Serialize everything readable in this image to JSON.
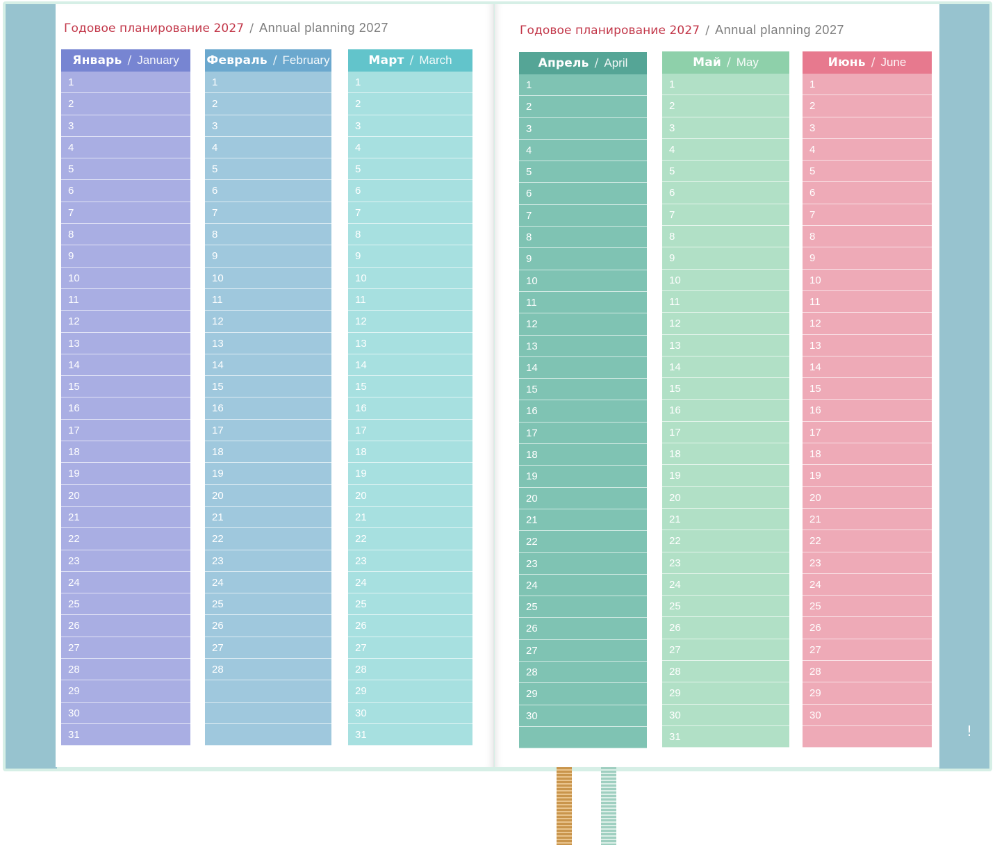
{
  "left_page": {
    "title_ru": "Годовое планирование 2027",
    "title_separator": "/",
    "title_en": "Annual planning 2027"
  },
  "right_page": {
    "title_ru": "Годовое планирование 2027",
    "title_separator": "/",
    "title_en": "Annual planning 2027"
  },
  "months": [
    {
      "ru": "Январь",
      "sep": "/",
      "en": "January",
      "days": 31,
      "header_color": "#7785d2",
      "body_color": "#a9aee3"
    },
    {
      "ru": "Февраль",
      "sep": "/",
      "en": "February",
      "days": 28,
      "header_color": "#6ba8ce",
      "body_color": "#9fc8dd"
    },
    {
      "ru": "Март",
      "sep": "/",
      "en": "March",
      "days": 31,
      "header_color": "#62c4cb",
      "body_color": "#a7e0e0"
    },
    {
      "ru": "Апрель",
      "sep": "/",
      "en": "April",
      "days": 30,
      "header_color": "#55a596",
      "body_color": "#7fc3b3"
    },
    {
      "ru": "Май",
      "sep": "/",
      "en": "May",
      "days": 31,
      "header_color": "#8ed0aa",
      "body_color": "#b1e0c6"
    },
    {
      "ru": "Июнь",
      "sep": "/",
      "en": "June",
      "days": 30,
      "header_color": "#e7798e",
      "body_color": "#eeaab7"
    }
  ],
  "cover_mark": "!",
  "colors": {
    "cover": "#d6efe6",
    "cover_edge": "#97c3cf",
    "title_red": "#c23648",
    "title_gray": "#7d7d7d",
    "ribbon_gold": "#c9954c",
    "ribbon_mint": "#9fcfc0"
  }
}
